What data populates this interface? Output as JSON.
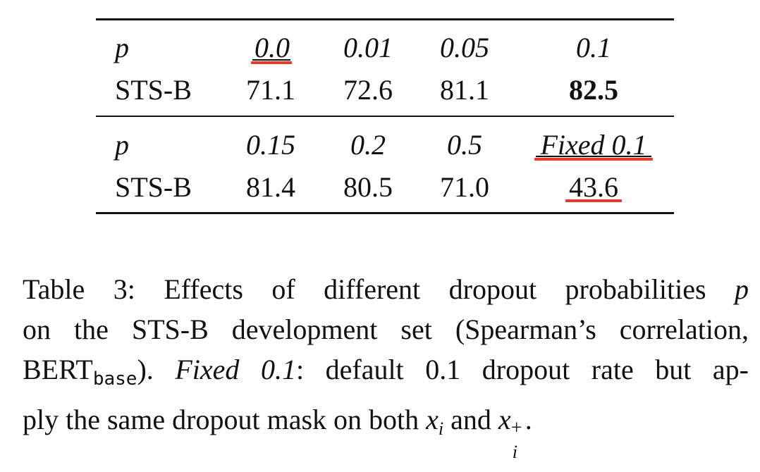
{
  "table": {
    "row1": {
      "label": "p",
      "values": [
        "0.0",
        "0.01",
        "0.05",
        "0.1"
      ]
    },
    "row2": {
      "label": "STS-B",
      "values": [
        "71.1",
        "72.6",
        "81.1",
        "82.5"
      ]
    },
    "row3": {
      "label": "p",
      "values": [
        "0.15",
        "0.2",
        "0.5",
        "Fixed 0.1"
      ]
    },
    "row4": {
      "label": "STS-B",
      "values": [
        "81.4",
        "80.5",
        "71.0",
        "43.6"
      ]
    },
    "highlight_color": "#e8392b"
  },
  "caption": {
    "line1_a": "Table 3: Effects of different dropout probabilities",
    "line1_p": "p",
    "line2": "on the STS-B development set (Spearman’s correlation,",
    "line3_bert": "BERT",
    "line3_base": "base",
    "line3_b": ").",
    "line3_fixed": "Fixed 0.1",
    "line3_c": ": default 0.1 dropout rate but ap-",
    "line4_a": "ply the same dropout mask on both",
    "line4_x1": "x",
    "line4_i1": "i",
    "line4_and": "and",
    "line4_x2": "x",
    "line4_plus": "+",
    "line4_i2": "i",
    "line4_end": "."
  }
}
